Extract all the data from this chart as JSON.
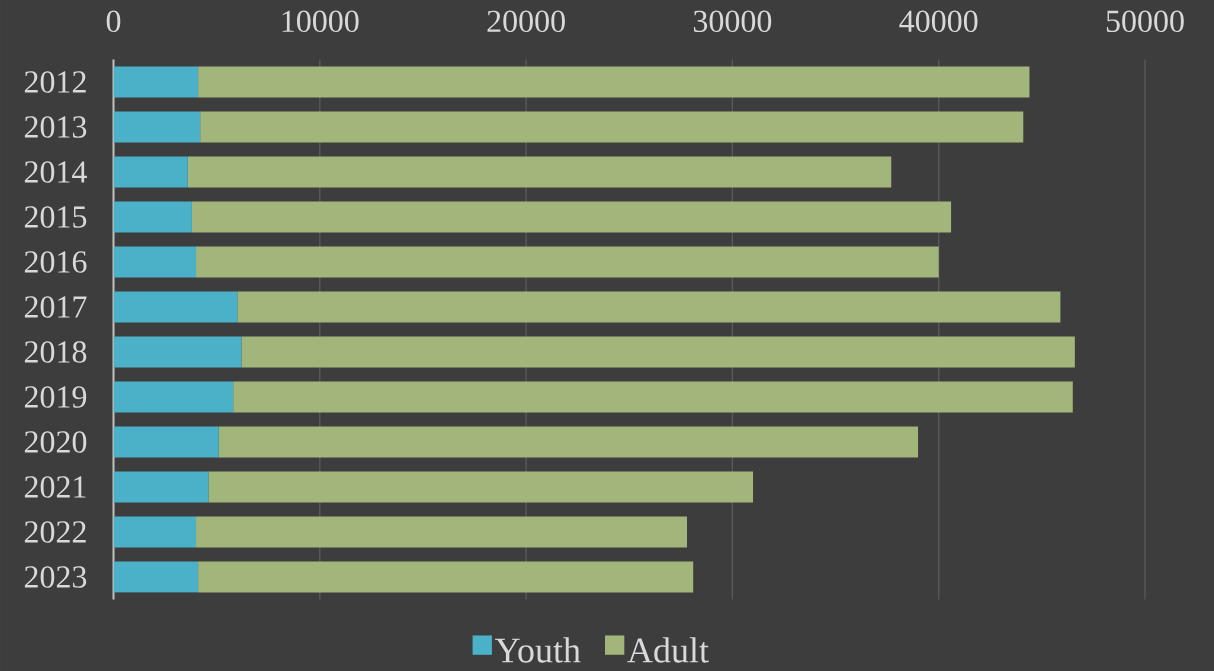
{
  "chart_data": {
    "type": "bar",
    "orientation": "horizontal",
    "stacked": true,
    "categories": [
      "2012",
      "2013",
      "2014",
      "2015",
      "2016",
      "2017",
      "2018",
      "2019",
      "2020",
      "2021",
      "2022",
      "2023"
    ],
    "series": [
      {
        "name": "Youth",
        "color": "#4bb1c8",
        "values": [
          4100,
          4200,
          3600,
          3800,
          4000,
          6000,
          6200,
          5800,
          5100,
          4600,
          4000,
          4100
        ]
      },
      {
        "name": "Adult",
        "color": "#a2b57a",
        "values": [
          40300,
          39900,
          34100,
          36800,
          36000,
          39900,
          40400,
          40700,
          33900,
          26400,
          23800,
          24000
        ]
      }
    ],
    "xlim": [
      0,
      50000
    ],
    "xticks": [
      0,
      10000,
      20000,
      30000,
      40000,
      50000
    ],
    "grid": "x",
    "legend": "bottom"
  }
}
